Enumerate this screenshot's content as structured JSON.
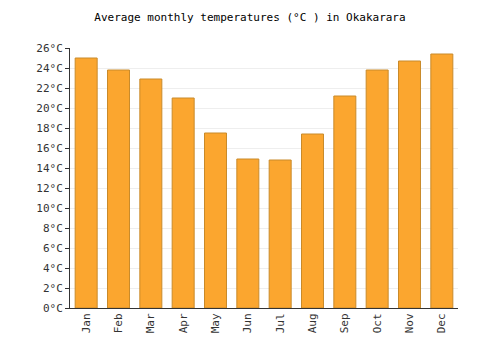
{
  "chart_data": {
    "type": "bar",
    "title": "Average monthly temperatures (°C ) in Okakarara",
    "categories": [
      "Jan",
      "Feb",
      "Mar",
      "Apr",
      "May",
      "Jun",
      "Jul",
      "Aug",
      "Sep",
      "Oct",
      "Nov",
      "Dec"
    ],
    "values": [
      25.0,
      23.8,
      22.9,
      21.0,
      17.5,
      14.9,
      14.8,
      17.4,
      21.2,
      23.8,
      24.7,
      25.4
    ],
    "color": "#fba62f",
    "ylim": [
      0,
      26
    ],
    "yticks": [
      {
        "value": 0,
        "label": "0°C"
      },
      {
        "value": 2,
        "label": "2°C"
      },
      {
        "value": 4,
        "label": "4°C"
      },
      {
        "value": 6,
        "label": "6°C"
      },
      {
        "value": 8,
        "label": "8°C"
      },
      {
        "value": 10,
        "label": "10°C"
      },
      {
        "value": 12,
        "label": "12°C"
      },
      {
        "value": 14,
        "label": "14°C"
      },
      {
        "value": 16,
        "label": "16°C"
      },
      {
        "value": 18,
        "label": "18°C"
      },
      {
        "value": 20,
        "label": "20°C"
      },
      {
        "value": 22,
        "label": "22°C"
      },
      {
        "value": 24,
        "label": "24°C"
      },
      {
        "value": 26,
        "label": "26°C"
      }
    ],
    "grid": true
  }
}
